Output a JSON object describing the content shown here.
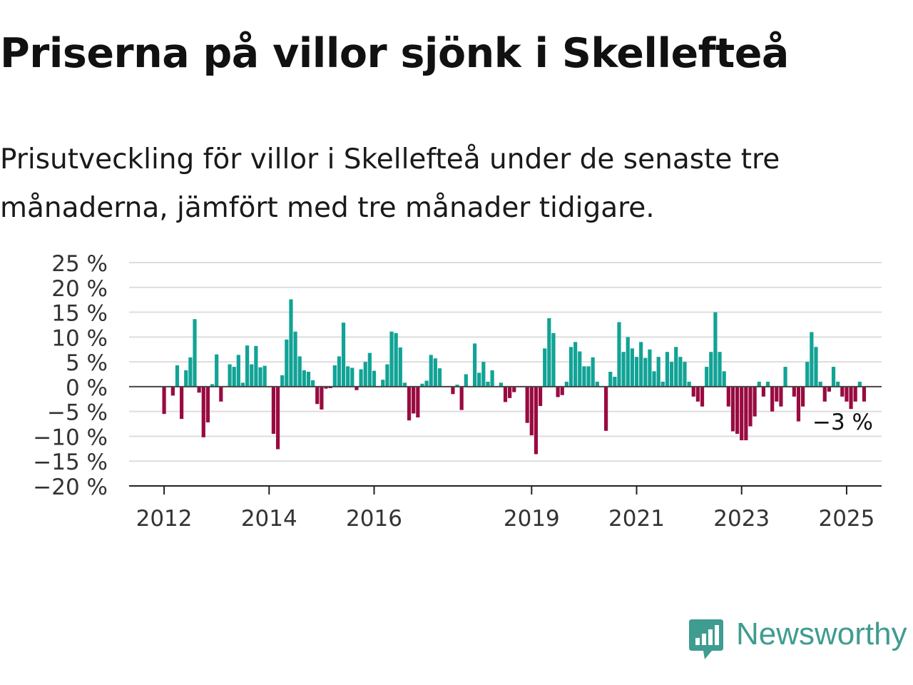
{
  "title": "Priserna på villor sjönk i Skellefteå",
  "subtitle": "Prisutveckling för villor i Skellefteå under de senaste tre månaderna, jämfört med tre månader tidigare.",
  "brand": {
    "name": "Newsworthy",
    "icon": "newsworthy-logo-icon",
    "color": "#3f9c90"
  },
  "colors": {
    "positive": "#11a396",
    "negative": "#990a40",
    "grid": "#dddddd",
    "axis": "#444444"
  },
  "chart_data": {
    "type": "bar",
    "title": "Priserna på villor sjönk i Skellefteå",
    "xlabel": "",
    "ylabel": "",
    "ylim": [
      -20,
      25
    ],
    "y_ticks": [
      25,
      20,
      15,
      10,
      5,
      0,
      -5,
      -10,
      -15,
      -20
    ],
    "y_tick_labels": [
      "25 %",
      "20 %",
      "15 %",
      "10 %",
      "5 %",
      "0 %",
      "−5 %",
      "−10 %",
      "−15 %",
      "−20 %"
    ],
    "x_range": [
      "2011-05",
      "2025-09"
    ],
    "x_ticks": [
      "2012-01",
      "2014-01",
      "2016-01",
      "2019-01",
      "2021-01",
      "2023-01",
      "2025-01"
    ],
    "x_tick_labels": [
      "2012",
      "2014",
      "2016",
      "2019",
      "2021",
      "2023",
      "2025"
    ],
    "grid": true,
    "annotation": {
      "text": "−3 %",
      "value": -3
    },
    "start_month": "2012-01",
    "values": [
      -5.5,
      0,
      -1.8,
      4.3,
      -6.5,
      3.3,
      5.9,
      13.6,
      -1.2,
      -10.2,
      -7.2,
      0.5,
      6.5,
      -3,
      0,
      4.5,
      4,
      6.4,
      0.8,
      8.3,
      4.5,
      8.2,
      3.9,
      4.2,
      0,
      -9.5,
      -12.6,
      2.3,
      9.5,
      17.6,
      11.1,
      6.1,
      3.3,
      3,
      1.3,
      -3.5,
      -4.6,
      -0.4,
      -0.3,
      4.3,
      6.1,
      12.9,
      4.1,
      3.8,
      -0.7,
      3.5,
      5,
      6.8,
      3.2,
      0,
      1.4,
      4.5,
      11.1,
      10.8,
      7.9,
      0.8,
      -6.8,
      -5.4,
      -6.2,
      0.6,
      1.2,
      6.4,
      5.7,
      3.7,
      0,
      0,
      -1.5,
      0.4,
      -4.7,
      2.5,
      0,
      8.7,
      2.8,
      5,
      1,
      3.3,
      0,
      0.8,
      -3.1,
      -2.3,
      -1.1,
      0,
      0,
      -7.3,
      -9.8,
      -13.6,
      -3.9,
      7.7,
      13.8,
      10.8,
      -2.1,
      -1.7,
      1,
      8,
      9,
      7.1,
      4.1,
      4.1,
      5.9,
      1,
      0,
      -8.9,
      3,
      2,
      13,
      7,
      10,
      7.7,
      6,
      9,
      5.8,
      7.5,
      3.1,
      6,
      1,
      7,
      5,
      8,
      6,
      5,
      1,
      -2,
      -3,
      -4,
      4,
      7,
      15,
      7,
      3.1,
      -4,
      -9,
      -9.5,
      -10.8,
      -10.8,
      -8,
      -6,
      1,
      -2,
      1,
      -5,
      -3,
      -4,
      4,
      0,
      -2,
      -7,
      -4,
      5,
      11,
      8,
      1,
      -3,
      -1,
      4,
      1,
      -2,
      -3,
      -4.5,
      -3,
      1,
      -3
    ]
  }
}
